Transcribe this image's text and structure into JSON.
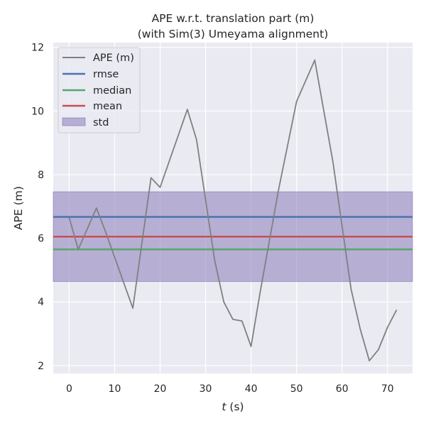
{
  "chart_data": {
    "type": "line",
    "title": "APE w.r.t. translation part (m)",
    "subtitle": "(with Sim(3) Umeyama alignment)",
    "xlabel_var": "t",
    "xlabel_unit": " (s)",
    "ylabel": "APE (m)",
    "xlim": [
      -3.5,
      75.5
    ],
    "ylim": [
      1.75,
      12.15
    ],
    "xticks": [
      0,
      10,
      20,
      30,
      40,
      50,
      60,
      70
    ],
    "yticks": [
      2,
      4,
      6,
      8,
      10,
      12
    ],
    "grid": true,
    "legend_position": "top-left",
    "series": [
      {
        "name": "APE (m)",
        "color": "#808080",
        "x": [
          0,
          2,
          6,
          8,
          10,
          12,
          14,
          18,
          20,
          26,
          28,
          32,
          34,
          36,
          38,
          40,
          42,
          46,
          50,
          54,
          58,
          60,
          62,
          64,
          66,
          68,
          70,
          72
        ],
        "y": [
          6.65,
          5.65,
          6.95,
          6.2,
          5.4,
          4.6,
          3.8,
          7.9,
          7.6,
          10.05,
          9.1,
          5.3,
          4.0,
          3.45,
          3.4,
          2.6,
          4.3,
          7.5,
          10.3,
          11.6,
          8.4,
          6.4,
          4.4,
          3.15,
          2.15,
          2.5,
          3.2,
          3.75
        ]
      }
    ],
    "rmse": {
      "name": "rmse",
      "value": 6.67,
      "color": "#4c72b0"
    },
    "median": {
      "name": "median",
      "value": 5.65,
      "color": "#55a868"
    },
    "mean": {
      "name": "mean",
      "value": 6.05,
      "color": "#c44e52"
    },
    "std": {
      "name": "std",
      "low": 4.64,
      "high": 7.46,
      "color": "#8172b3"
    }
  }
}
